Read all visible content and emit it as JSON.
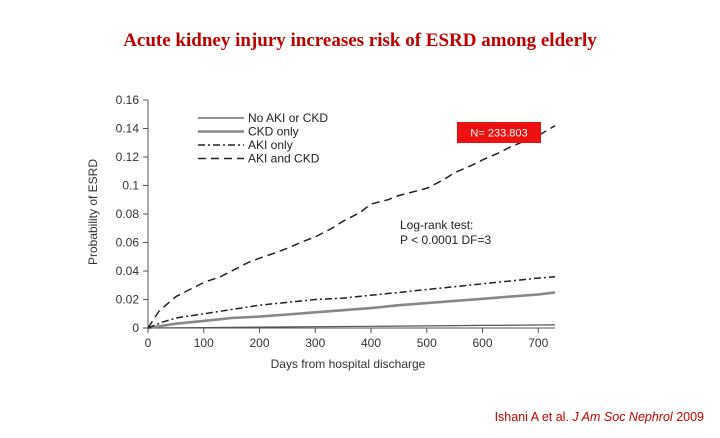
{
  "slide": {
    "title": "Acute kidney injury increases risk of ESRD among elderly"
  },
  "citation": {
    "authors": "Ishani A  et al.",
    "journal": "J Am Soc Nephrol",
    "year": "2009"
  },
  "chart_data": {
    "type": "line",
    "xlabel": "Days from hospital discharge",
    "ylabel": "Probability of ESRD",
    "xlim": [
      0,
      730
    ],
    "ylim": [
      0,
      0.16
    ],
    "xticks": [
      0,
      100,
      200,
      300,
      400,
      500,
      600,
      700
    ],
    "xtick_labels": [
      "0",
      "100",
      "200",
      "300",
      "400",
      "500",
      "600",
      "700"
    ],
    "yticks": [
      0,
      0.02,
      0.04,
      0.06,
      0.08,
      0.1,
      0.12,
      0.14,
      0.16
    ],
    "ytick_labels": [
      "0",
      "0.02",
      "0.04",
      "0.06",
      "0.08",
      "0.1",
      "0.12",
      "0.14",
      "0.16"
    ],
    "grid": false,
    "legend_position": "top-left",
    "series": [
      {
        "name": "No AKI or CKD",
        "color": "#555555",
        "style": "solid-thin",
        "x": [
          0,
          100,
          200,
          300,
          400,
          500,
          600,
          730
        ],
        "y": [
          0,
          0.0003,
          0.0006,
          0.0009,
          0.0012,
          0.0015,
          0.0018,
          0.0022
        ]
      },
      {
        "name": "CKD only",
        "color": "#888888",
        "style": "solid-thick",
        "x": [
          0,
          50,
          100,
          150,
          200,
          250,
          300,
          350,
          400,
          450,
          500,
          550,
          600,
          650,
          700,
          730
        ],
        "y": [
          0,
          0.003,
          0.005,
          0.007,
          0.008,
          0.0095,
          0.011,
          0.0125,
          0.014,
          0.016,
          0.0175,
          0.019,
          0.0205,
          0.022,
          0.0235,
          0.025
        ]
      },
      {
        "name": "AKI only",
        "color": "#222222",
        "style": "dash-dot",
        "x": [
          0,
          25,
          50,
          100,
          150,
          200,
          250,
          300,
          350,
          400,
          450,
          500,
          550,
          600,
          650,
          700,
          730
        ],
        "y": [
          0,
          0.004,
          0.007,
          0.01,
          0.013,
          0.016,
          0.018,
          0.02,
          0.021,
          0.023,
          0.025,
          0.027,
          0.029,
          0.031,
          0.033,
          0.035,
          0.036
        ]
      },
      {
        "name": "AKI and CKD",
        "color": "#222222",
        "style": "dashed",
        "x": [
          0,
          20,
          50,
          80,
          100,
          130,
          150,
          180,
          200,
          230,
          250,
          280,
          300,
          330,
          350,
          380,
          400,
          430,
          450,
          480,
          500,
          530,
          550,
          580,
          600,
          630,
          650,
          680,
          700,
          730
        ],
        "y": [
          0,
          0.012,
          0.022,
          0.028,
          0.032,
          0.036,
          0.04,
          0.046,
          0.049,
          0.053,
          0.056,
          0.061,
          0.064,
          0.07,
          0.075,
          0.081,
          0.087,
          0.09,
          0.093,
          0.096,
          0.098,
          0.104,
          0.109,
          0.114,
          0.118,
          0.123,
          0.127,
          0.132,
          0.135,
          0.142
        ]
      }
    ],
    "annotations": {
      "logrank_line1": "Log-rank test:",
      "logrank_line2": "P < 0.0001 DF=3",
      "n_badge": "N= 233.803",
      "n_badge_color": "#ee1111"
    }
  }
}
